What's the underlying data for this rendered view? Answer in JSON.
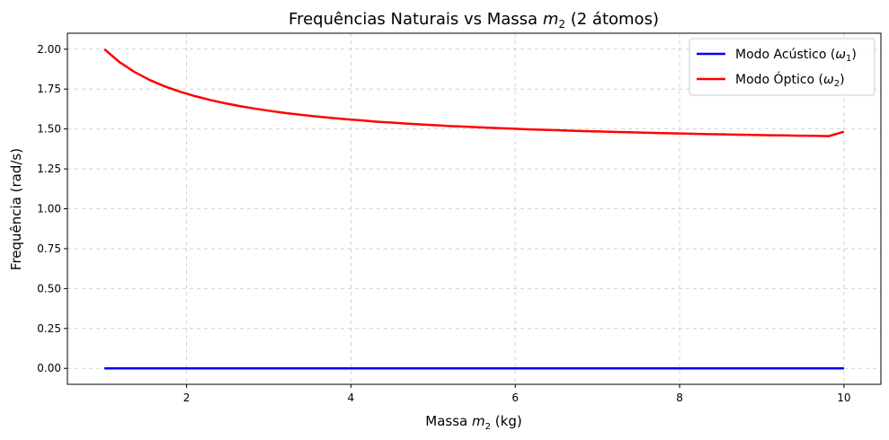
{
  "chart_data": {
    "type": "line",
    "title_parts": [
      "Frequências Naturais vs Massa ",
      "m",
      "2",
      " (2 átomos)"
    ],
    "xlabel_parts": [
      "Massa ",
      "m",
      "2",
      " (kg)"
    ],
    "ylabel": "Frequência (rad/s)",
    "xlim": [
      0.55,
      10.45
    ],
    "ylim": [
      -0.1,
      2.1
    ],
    "xticks": [
      2,
      4,
      6,
      8,
      10
    ],
    "xtick_labels": [
      "2",
      "4",
      "6",
      "8",
      "10"
    ],
    "yticks": [
      0,
      0.25,
      0.5,
      0.75,
      1.0,
      1.25,
      1.5,
      1.75,
      2.0
    ],
    "ytick_labels": [
      "0.00",
      "0.25",
      "0.50",
      "0.75",
      "1.00",
      "1.25",
      "1.50",
      "1.75",
      "2.00"
    ],
    "grid": true,
    "legend_position": "top-right",
    "x": [
      1.0,
      1.184,
      1.367,
      1.551,
      1.735,
      1.918,
      2.102,
      2.286,
      2.469,
      2.653,
      2.837,
      3.02,
      3.204,
      3.388,
      3.571,
      3.755,
      3.939,
      4.122,
      4.306,
      4.49,
      4.673,
      4.857,
      5.041,
      5.224,
      5.408,
      5.592,
      5.776,
      5.959,
      6.143,
      6.327,
      6.51,
      6.694,
      6.878,
      7.061,
      7.245,
      7.429,
      7.612,
      7.796,
      7.98,
      8.163,
      8.347,
      8.531,
      8.714,
      8.898,
      9.082,
      9.265,
      9.449,
      9.633,
      9.816,
      10.0
    ],
    "series": [
      {
        "name_parts": [
          "Modo Acústico (",
          "ω",
          "1",
          ")"
        ],
        "color": "#0000ff",
        "values": [
          0,
          0,
          0,
          0,
          0,
          0,
          0,
          0,
          0,
          0,
          0,
          0,
          0,
          0,
          0,
          0,
          0,
          0,
          0,
          0,
          0,
          0,
          0,
          0,
          0,
          0,
          0,
          0,
          0,
          0,
          0,
          0,
          0,
          0,
          0,
          0,
          0,
          0,
          0,
          0,
          0,
          0,
          0,
          0,
          0,
          0,
          0,
          0,
          0,
          0
        ]
      },
      {
        "name_parts": [
          "Modo Óptico (",
          "ω",
          "2",
          ")"
        ],
        "color": "#ff0000",
        "values": [
          2.0,
          1.919,
          1.857,
          1.807,
          1.767,
          1.734,
          1.706,
          1.682,
          1.661,
          1.643,
          1.627,
          1.613,
          1.6,
          1.589,
          1.579,
          1.57,
          1.561,
          1.554,
          1.546,
          1.54,
          1.534,
          1.528,
          1.523,
          1.518,
          1.514,
          1.51,
          1.506,
          1.502,
          1.498,
          1.495,
          1.492,
          1.489,
          1.486,
          1.484,
          1.481,
          1.479,
          1.476,
          1.474,
          1.472,
          1.47,
          1.468,
          1.466,
          1.464,
          1.463,
          1.461,
          1.46,
          1.458,
          1.457,
          1.455,
          1.483
        ]
      }
    ]
  }
}
